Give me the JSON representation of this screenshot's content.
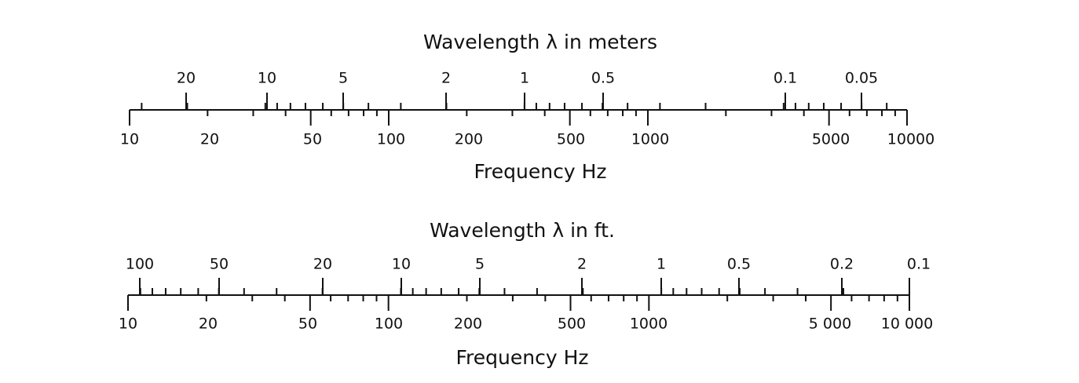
{
  "scales": [
    {
      "title": "Wavelength  λ in  meters",
      "wavelength_labels": [
        "20",
        "10",
        "5",
        "2",
        "1",
        "0.5",
        "0.1",
        "0.05"
      ],
      "frequency_labels": [
        "10",
        "20",
        "50",
        "100",
        "200",
        "500",
        "1000",
        "5000",
        "10000"
      ],
      "axis_label": "Frequency  Hz"
    },
    {
      "title": "Wavelength  λ  in  ft.",
      "wavelength_labels": [
        "100",
        "50",
        "20",
        "10",
        "5",
        "2",
        "1",
        "0.5",
        "0.2",
        "0.1"
      ],
      "frequency_labels": [
        "10",
        "20",
        "50",
        "100",
        "200",
        "500",
        "1000",
        "5 000",
        "10 000"
      ],
      "axis_label": "Frequency  Hz"
    }
  ]
}
